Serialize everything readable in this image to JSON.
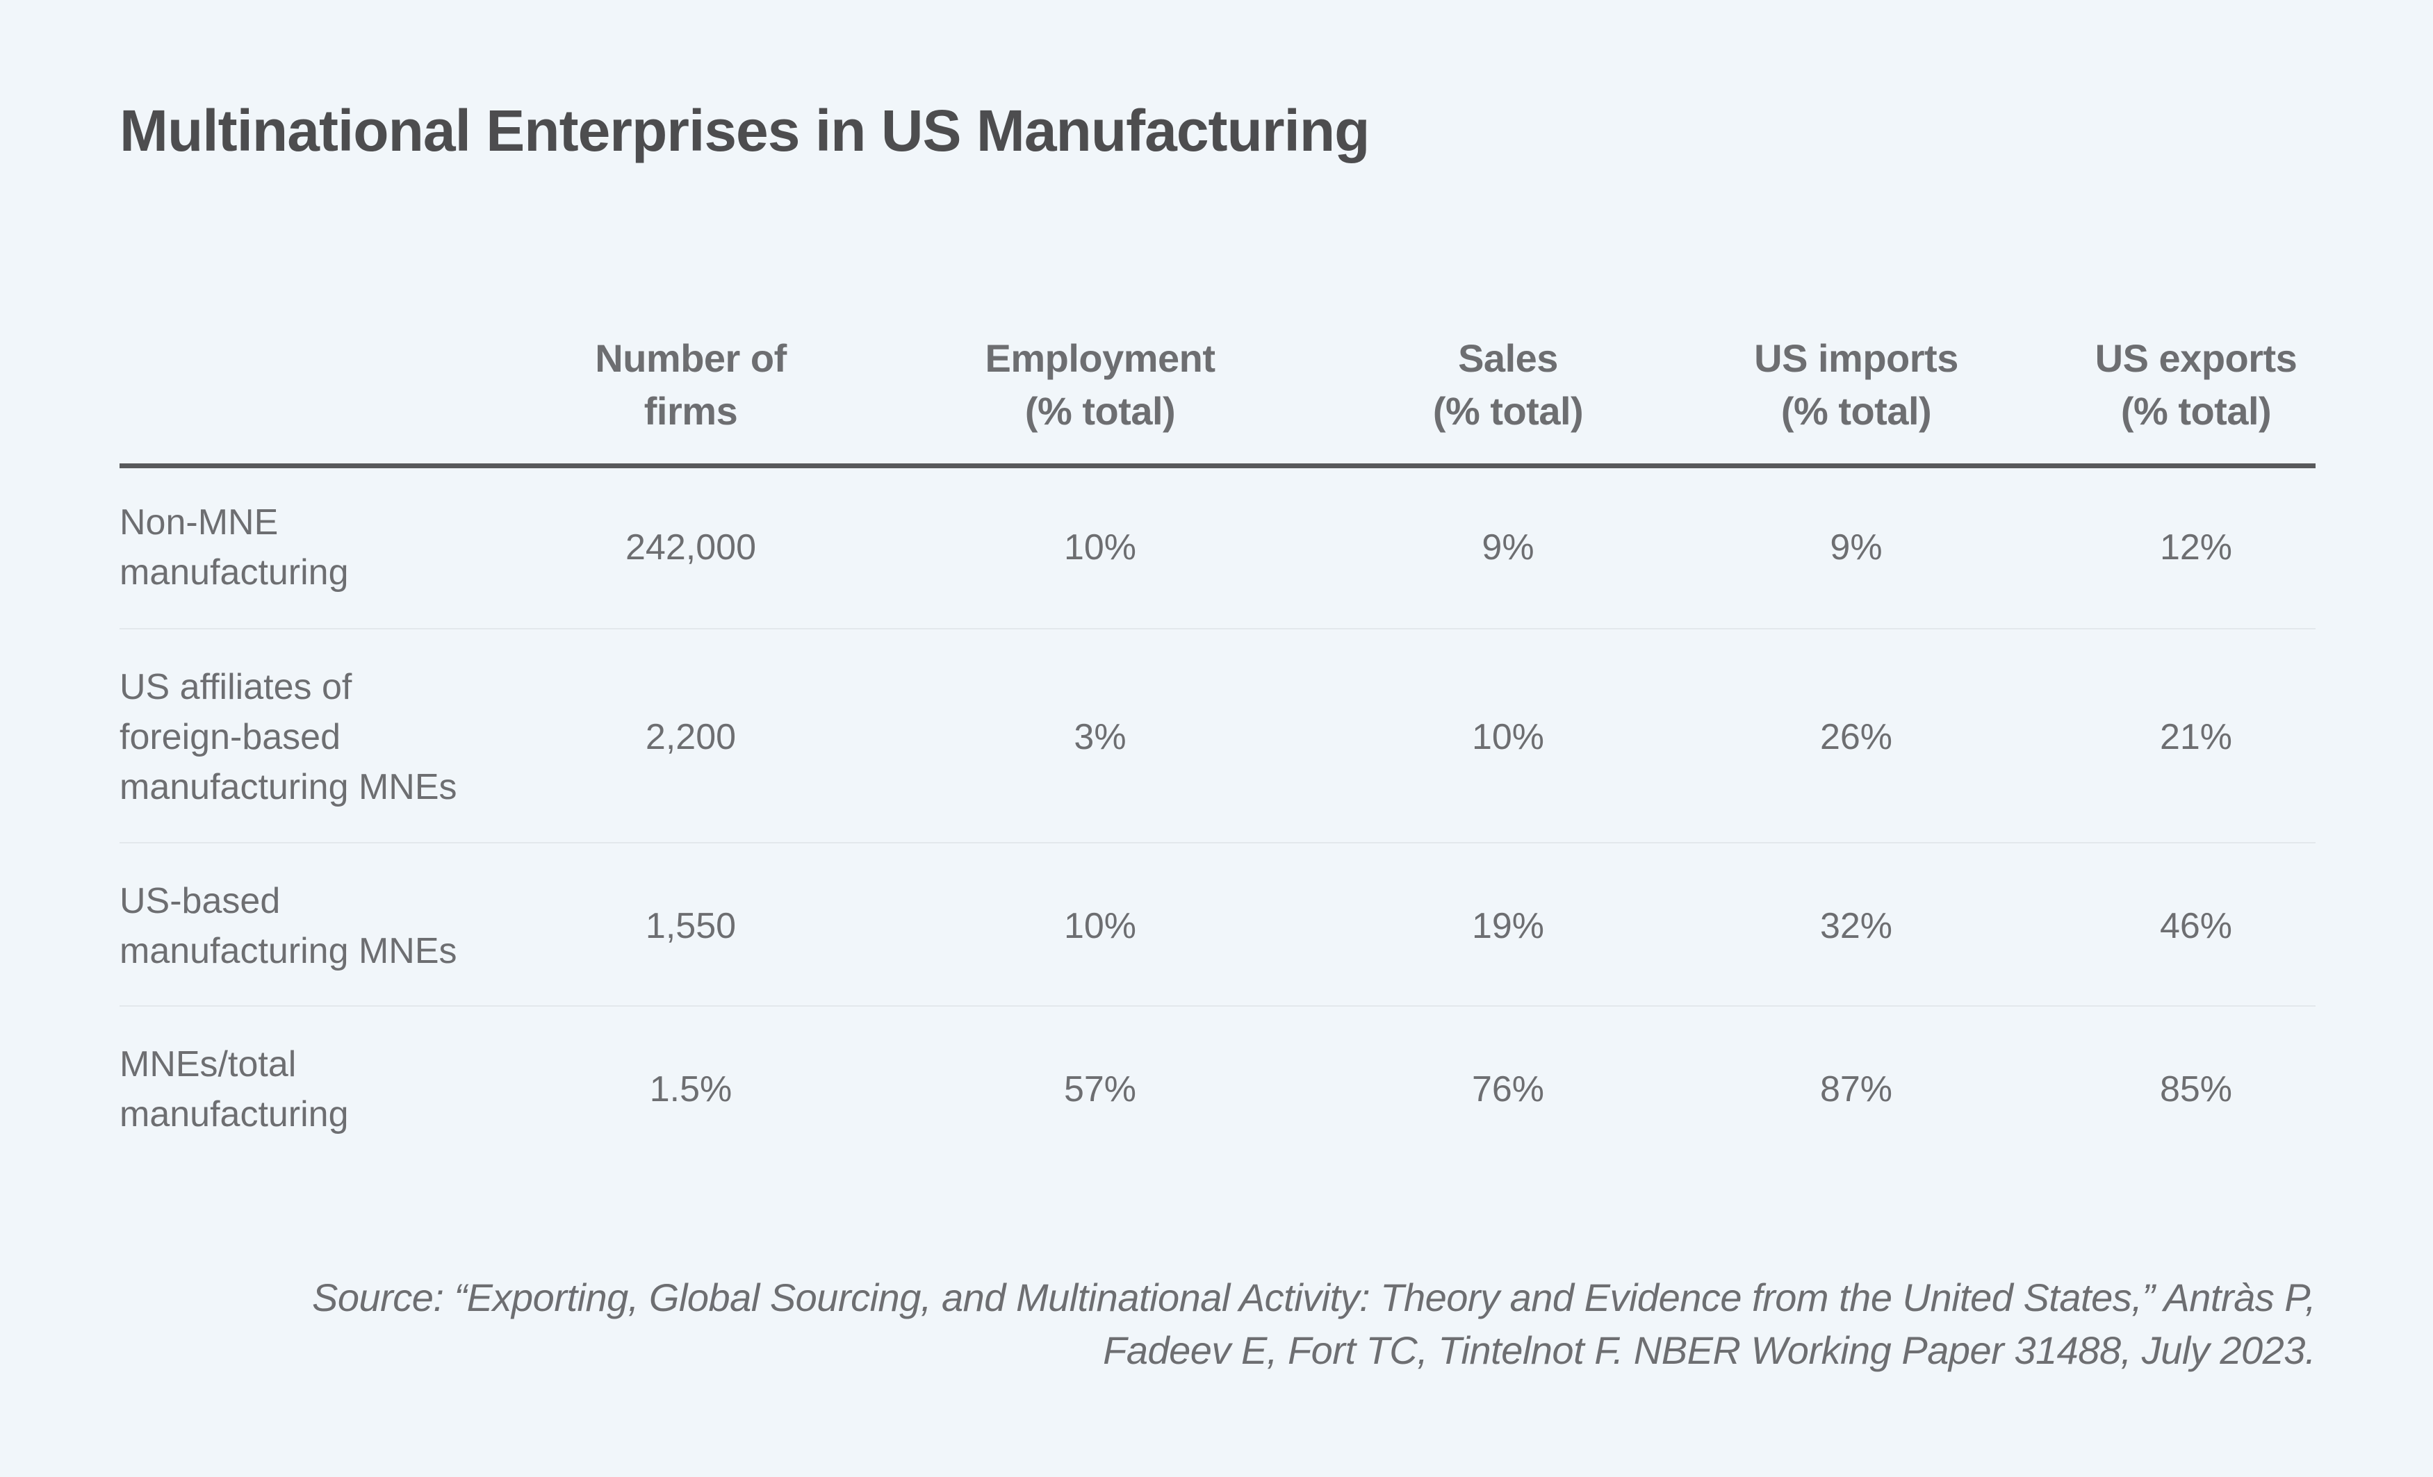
{
  "title": "Multinational Enterprises in US Manufacturing",
  "columns": [
    {
      "line1": "Number of",
      "line2": "firms"
    },
    {
      "line1": "Employment",
      "line2": "(% total)"
    },
    {
      "line1": "Sales",
      "line2": "(% total)"
    },
    {
      "line1": "US imports",
      "line2": "(% total)"
    },
    {
      "line1": "US exports",
      "line2": "(% total)"
    }
  ],
  "rows": [
    {
      "label": [
        "Non-MNE",
        "manufacturing"
      ],
      "values": [
        "242,000",
        "10%",
        "9%",
        "9%",
        "12%"
      ]
    },
    {
      "label": [
        "US affiliates of",
        "foreign-based",
        "manufacturing MNEs"
      ],
      "values": [
        "2,200",
        "3%",
        "10%",
        "26%",
        "21%"
      ]
    },
    {
      "label": [
        "US-based",
        "manufacturing MNEs"
      ],
      "values": [
        "1,550",
        "10%",
        "19%",
        "32%",
        "46%"
      ]
    },
    {
      "label": [
        "MNEs/total",
        "manufacturing"
      ],
      "values": [
        "1.5%",
        "57%",
        "76%",
        "87%",
        "85%"
      ]
    }
  ],
  "source": {
    "line1": "Source: “Exporting, Global Sourcing, and Multinational Activity: Theory and Evidence from the United States,” Antràs P,",
    "line2": "Fadeev E, Fort TC, Tintelnot F. NBER Working Paper 31488, July 2023."
  },
  "colors": {
    "background": "#f1f6fa",
    "text": "#6d6e71",
    "title": "#4d4d4f",
    "rule": "#58595b"
  }
}
